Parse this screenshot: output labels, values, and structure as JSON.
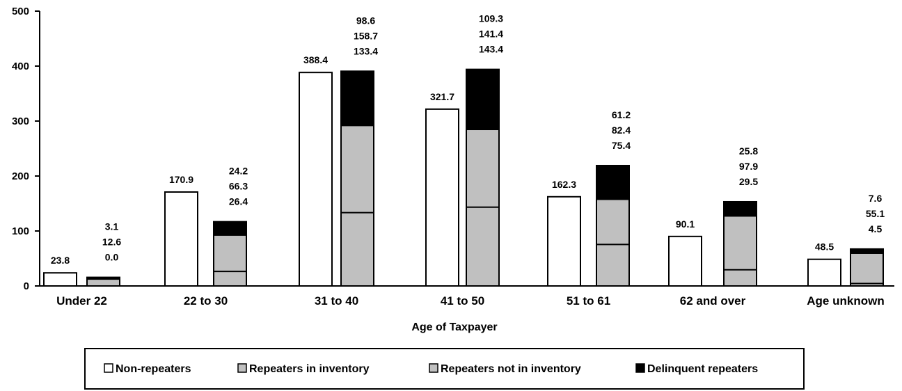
{
  "chart_data": {
    "type": "bar",
    "title": "",
    "xlabel": "Age of Taxpayer",
    "ylabel": "",
    "ylim": [
      0,
      500
    ],
    "yticks": [
      "0",
      "100",
      "200",
      "300",
      "400",
      "500"
    ],
    "categories": [
      "Under 22",
      "22 to 30",
      "31 to 40",
      "41 to 50",
      "51 to 61",
      "62 and over",
      "Age unknown"
    ],
    "series": [
      {
        "name": "Non-repeaters",
        "color": "#ffffff",
        "values": [
          23.8,
          170.9,
          388.4,
          321.7,
          162.3,
          90.1,
          48.5
        ]
      },
      {
        "name": "Repeaters in inventory",
        "color": "#c0c0c0",
        "values": [
          0.0,
          26.4,
          133.4,
          143.4,
          75.4,
          29.5,
          4.5
        ]
      },
      {
        "name": "Repeaters not in inventory",
        "color": "#c0c0c0",
        "values": [
          12.6,
          66.3,
          158.7,
          141.4,
          82.4,
          97.9,
          55.1
        ]
      },
      {
        "name": "Delinquent repeaters",
        "color": "#000000",
        "values": [
          3.1,
          24.2,
          98.6,
          109.3,
          61.2,
          25.8,
          7.6
        ]
      }
    ],
    "data_labels": {
      "non_repeaters": [
        "23.8",
        "170.9",
        "388.4",
        "321.7",
        "162.3",
        "90.1",
        "48.5"
      ],
      "delinquent_repeaters": [
        "3.1",
        "24.2",
        "98.6",
        "109.3",
        "61.2",
        "25.8",
        "7.6"
      ],
      "repeaters_not_in_inventory": [
        "12.6",
        "66.3",
        "158.7",
        "141.4",
        "82.4",
        "97.9",
        "55.1"
      ],
      "repeaters_in_inventory": [
        "0.0",
        "26.4",
        "133.4",
        "143.4",
        "75.4",
        "29.5",
        "4.5"
      ]
    },
    "legend": {
      "placement": "bottom",
      "items": [
        "Non-repeaters",
        "Repeaters in inventory",
        "Repeaters not in inventory",
        "Delinquent repeaters"
      ]
    },
    "grid": false
  }
}
